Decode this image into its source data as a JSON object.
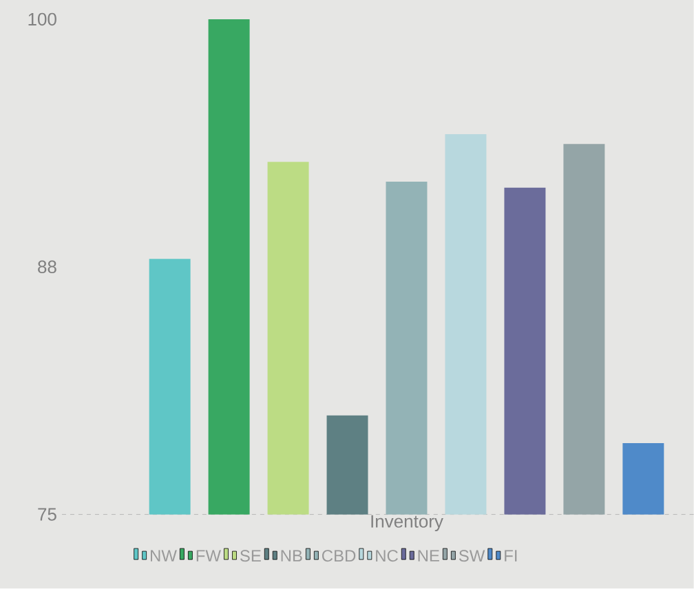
{
  "chart_data": {
    "type": "bar",
    "categories": [
      "Inventory"
    ],
    "series": [
      {
        "name": "NW",
        "color": "#5fc6c6",
        "values": [
          87.9
        ]
      },
      {
        "name": "FW",
        "color": "#38a862",
        "values": [
          100
        ]
      },
      {
        "name": "SE",
        "color": "#bcdc84",
        "values": [
          92.8
        ]
      },
      {
        "name": "NB",
        "color": "#5e8083",
        "values": [
          80.0
        ]
      },
      {
        "name": "CBD",
        "color": "#93b3b6",
        "values": [
          91.8
        ]
      },
      {
        "name": "NC",
        "color": "#b8d8de",
        "values": [
          94.2
        ]
      },
      {
        "name": "NE",
        "color": "#6b6c9b",
        "values": [
          91.5
        ]
      },
      {
        "name": "SW",
        "color": "#94a5a7",
        "values": [
          93.7
        ]
      },
      {
        "name": "FI",
        "color": "#4f8ac9",
        "values": [
          78.6
        ]
      }
    ],
    "ylim": [
      75,
      100
    ],
    "yticks": [
      75,
      {
        "value": 87.5,
        "label": "88"
      },
      100
    ],
    "grid": false,
    "legend": "bottom"
  }
}
